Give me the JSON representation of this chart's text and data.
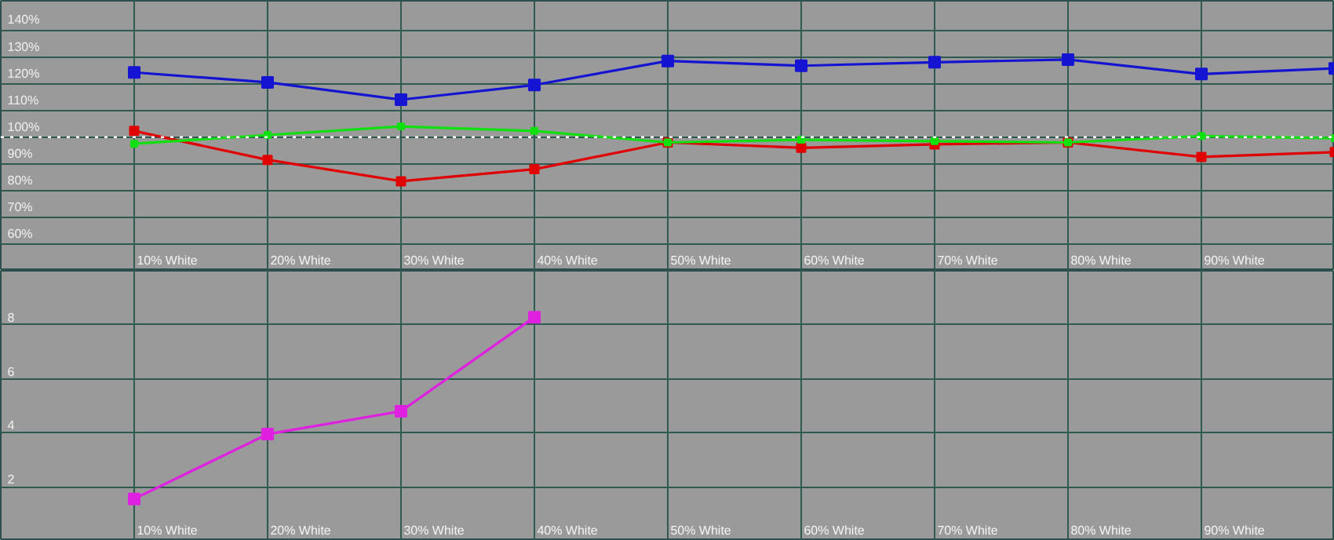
{
  "chart_data": [
    {
      "type": "line",
      "categories": [
        "10% White",
        "20% White",
        "30% White",
        "40% White",
        "50% White",
        "60% White",
        "70% White",
        "80% White",
        "90% White",
        null
      ],
      "series": [
        {
          "color": "#1414d2",
          "values": [
            124.2,
            120.5,
            114,
            119.5,
            128.5,
            126.7,
            128,
            129,
            123.6,
            125.7
          ]
        },
        {
          "color": "#e00000",
          "values": [
            102.3,
            91.5,
            83.5,
            88,
            98,
            96,
            97.3,
            98,
            92.6,
            94.4
          ]
        },
        {
          "color": "#10e010",
          "values": [
            97.5,
            100.8,
            104,
            102.3,
            98,
            99,
            98.5,
            98,
            100.4,
            99.6
          ]
        }
      ],
      "ylim": [
        50,
        151
      ],
      "yticks": [
        {
          "value": 60,
          "label": "60%"
        },
        {
          "value": 70,
          "label": "70%"
        },
        {
          "value": 80,
          "label": "80%"
        },
        {
          "value": 90,
          "label": "90%"
        },
        {
          "value": 100,
          "label": "100%"
        },
        {
          "value": 110,
          "label": "110%"
        },
        {
          "value": 120,
          "label": "120%"
        },
        {
          "value": 130,
          "label": "130%"
        },
        {
          "value": 140,
          "label": "140%"
        }
      ],
      "ref_lines": [
        {
          "axis": "y",
          "value": 100,
          "color": "#ffffff",
          "line_style": "dotted"
        }
      ],
      "grid": true,
      "marker": "square",
      "line_style": "solid"
    },
    {
      "type": "line",
      "categories": [
        "10% White",
        "20% White",
        "30% White",
        "40% White",
        "50% White",
        "60% White",
        "70% White",
        "80% White",
        "90% White",
        null
      ],
      "series": [
        {
          "color": "#e020e0",
          "values": [
            1.55,
            3.95,
            4.8,
            8.28,
            null,
            null,
            null,
            null,
            null,
            null
          ]
        }
      ],
      "ylim": [
        0,
        10
      ],
      "yticks": [
        2,
        4,
        6,
        8
      ],
      "grid": true,
      "marker": "square",
      "line_style": "solid"
    }
  ]
}
